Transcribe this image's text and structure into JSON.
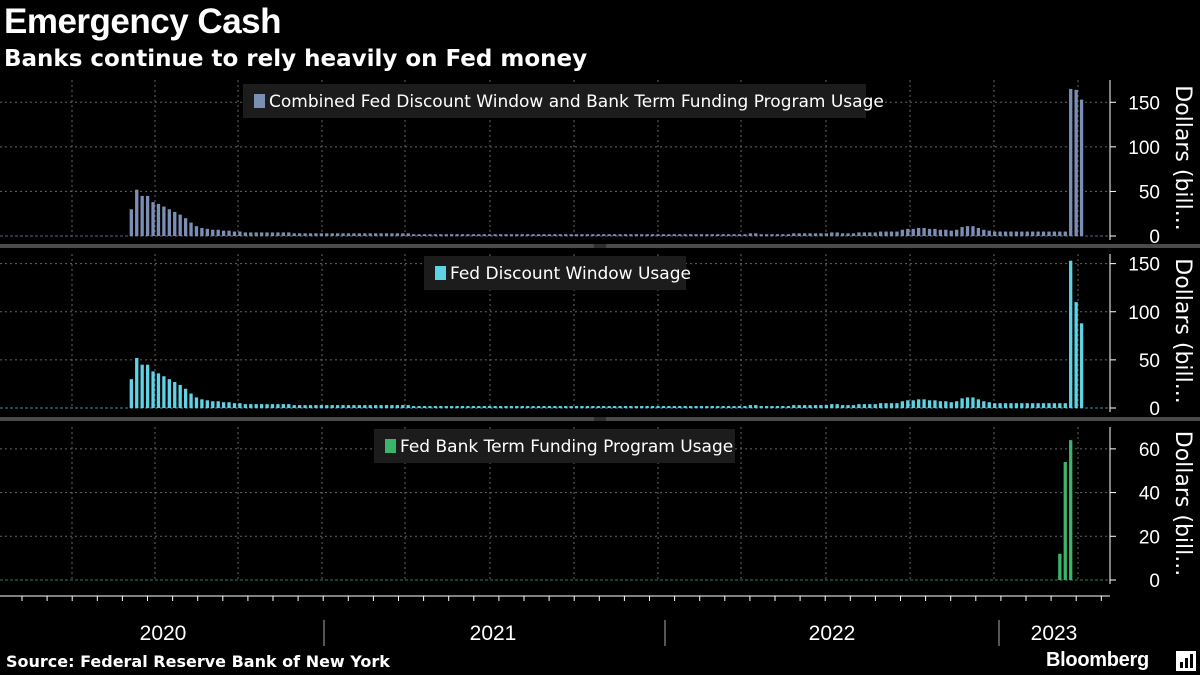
{
  "header": {
    "title": "Emergency Cash",
    "subtitle": "Banks continue to rely heavily on Fed money"
  },
  "footer": {
    "source": "Source: Federal Reserve Bank of New York",
    "brand": "Bloomberg"
  },
  "chart_data": [
    {
      "type": "bar",
      "legend": "Combined Fed Discount Window and Bank Term Funding Program Usage",
      "ylabel": "Dollars (bill...",
      "color": "#7b8fb5",
      "ylim": [
        0,
        175
      ],
      "yticks": [
        0,
        50,
        100,
        150
      ],
      "values": [
        0,
        0,
        0,
        0,
        0,
        0,
        0,
        0,
        0,
        0,
        0,
        0,
        30,
        52,
        45,
        45,
        38,
        36,
        33,
        30,
        27,
        24,
        20,
        15,
        11,
        9,
        8,
        7,
        7,
        6,
        6,
        5,
        5,
        4,
        4,
        4,
        4,
        4,
        4,
        4,
        4,
        4,
        3,
        3,
        3,
        3,
        3,
        3,
        3,
        3,
        3,
        3,
        3,
        3,
        3,
        3,
        3,
        3,
        3,
        3,
        3,
        3,
        3,
        3,
        2,
        2,
        2,
        2,
        2,
        2,
        2,
        2,
        2,
        2,
        2,
        2,
        2,
        2,
        2,
        2,
        2,
        2,
        2,
        2,
        2,
        2,
        2,
        2,
        2,
        2,
        2,
        2,
        2,
        2,
        2,
        2,
        2,
        2,
        2,
        2,
        2,
        2,
        2,
        2,
        2,
        2,
        2,
        2,
        2,
        2,
        2,
        2,
        2,
        2,
        2,
        2,
        2,
        2,
        2,
        2,
        2,
        2,
        2,
        2,
        2,
        2,
        3,
        3,
        2,
        2,
        2,
        2,
        2,
        2,
        3,
        3,
        3,
        3,
        3,
        3,
        3,
        4,
        4,
        3,
        3,
        3,
        4,
        4,
        4,
        4,
        5,
        5,
        5,
        5,
        7,
        8,
        8,
        9,
        9,
        8,
        8,
        7,
        7,
        6,
        7,
        10,
        11,
        11,
        9,
        7,
        6,
        5,
        5,
        5,
        5,
        5,
        5,
        5,
        5,
        5,
        5,
        5,
        5,
        5,
        5,
        165,
        164,
        153
      ]
    },
    {
      "type": "bar",
      "legend": "Fed Discount Window Usage",
      "ylabel": "Dollars (bill...",
      "color": "#5fd3e6",
      "ylim": [
        0,
        160
      ],
      "yticks": [
        0,
        50,
        100,
        150
      ],
      "values": [
        0,
        0,
        0,
        0,
        0,
        0,
        0,
        0,
        0,
        0,
        0,
        0,
        30,
        52,
        45,
        45,
        38,
        36,
        33,
        30,
        27,
        24,
        20,
        15,
        11,
        9,
        8,
        7,
        7,
        6,
        6,
        5,
        5,
        4,
        4,
        4,
        4,
        4,
        4,
        4,
        4,
        4,
        3,
        3,
        3,
        3,
        3,
        3,
        3,
        3,
        3,
        3,
        3,
        3,
        3,
        3,
        3,
        3,
        3,
        3,
        3,
        3,
        3,
        3,
        2,
        2,
        2,
        2,
        2,
        2,
        2,
        2,
        2,
        2,
        2,
        2,
        2,
        2,
        2,
        2,
        2,
        2,
        2,
        2,
        2,
        2,
        2,
        2,
        2,
        2,
        2,
        2,
        2,
        2,
        2,
        2,
        2,
        2,
        2,
        2,
        2,
        2,
        2,
        2,
        2,
        2,
        2,
        2,
        2,
        2,
        2,
        2,
        2,
        2,
        2,
        2,
        2,
        2,
        2,
        2,
        2,
        2,
        2,
        2,
        2,
        2,
        3,
        3,
        2,
        2,
        2,
        2,
        2,
        2,
        3,
        3,
        3,
        3,
        3,
        3,
        3,
        4,
        4,
        3,
        3,
        3,
        4,
        4,
        4,
        4,
        5,
        5,
        5,
        5,
        7,
        8,
        8,
        9,
        9,
        8,
        8,
        7,
        7,
        6,
        7,
        10,
        11,
        11,
        9,
        7,
        6,
        5,
        5,
        5,
        5,
        5,
        5,
        5,
        5,
        5,
        5,
        5,
        5,
        5,
        5,
        153,
        110,
        88
      ]
    },
    {
      "type": "bar",
      "legend": "Fed Bank Term Funding Program Usage",
      "ylabel": "Dollars (bill...",
      "color": "#3bb56a",
      "ylim": [
        0,
        70
      ],
      "yticks": [
        0,
        20,
        40,
        60
      ],
      "values": [
        0,
        0,
        0,
        0,
        0,
        0,
        0,
        0,
        0,
        0,
        0,
        0,
        0,
        0,
        0,
        0,
        0,
        0,
        0,
        0,
        0,
        0,
        0,
        0,
        0,
        0,
        0,
        0,
        0,
        0,
        0,
        0,
        0,
        0,
        0,
        0,
        0,
        0,
        0,
        0,
        0,
        0,
        0,
        0,
        0,
        0,
        0,
        0,
        0,
        0,
        0,
        0,
        0,
        0,
        0,
        0,
        0,
        0,
        0,
        0,
        0,
        0,
        0,
        0,
        0,
        0,
        0,
        0,
        0,
        0,
        0,
        0,
        0,
        0,
        0,
        0,
        0,
        0,
        0,
        0,
        0,
        0,
        0,
        0,
        0,
        0,
        0,
        0,
        0,
        0,
        0,
        0,
        0,
        0,
        0,
        0,
        0,
        0,
        0,
        0,
        0,
        0,
        0,
        0,
        0,
        0,
        0,
        0,
        0,
        0,
        0,
        0,
        0,
        0,
        0,
        0,
        0,
        0,
        0,
        0,
        0,
        0,
        0,
        0,
        0,
        0,
        0,
        0,
        0,
        0,
        0,
        0,
        0,
        0,
        0,
        0,
        0,
        0,
        0,
        0,
        0,
        0,
        0,
        0,
        0,
        0,
        0,
        0,
        0,
        0,
        0,
        0,
        0,
        0,
        0,
        0,
        0,
        0,
        0,
        0,
        0,
        0,
        0,
        0,
        0,
        0,
        0,
        0,
        0,
        0,
        0,
        0,
        0,
        0,
        0,
        0,
        0,
        0,
        0,
        0,
        0,
        0,
        0,
        12,
        54,
        64
      ]
    }
  ],
  "x_axis": {
    "labels": [
      "2020",
      "2021",
      "2022",
      "2023"
    ]
  }
}
